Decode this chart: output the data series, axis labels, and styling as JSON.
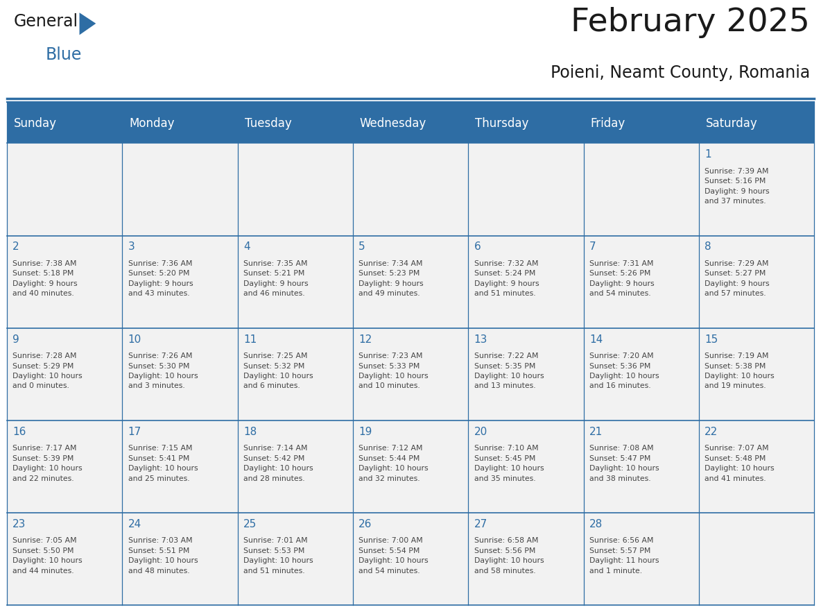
{
  "title": "February 2025",
  "subtitle": "Poieni, Neamt County, Romania",
  "header_color": "#2E6DA4",
  "header_text_color": "#FFFFFF",
  "cell_bg_color": "#F2F2F2",
  "border_color": "#2E6DA4",
  "day_number_color": "#2E6DA4",
  "text_color": "#444444",
  "days_of_week": [
    "Sunday",
    "Monday",
    "Tuesday",
    "Wednesday",
    "Thursday",
    "Friday",
    "Saturday"
  ],
  "weeks": [
    [
      {
        "day": "",
        "info": ""
      },
      {
        "day": "",
        "info": ""
      },
      {
        "day": "",
        "info": ""
      },
      {
        "day": "",
        "info": ""
      },
      {
        "day": "",
        "info": ""
      },
      {
        "day": "",
        "info": ""
      },
      {
        "day": "1",
        "info": "Sunrise: 7:39 AM\nSunset: 5:16 PM\nDaylight: 9 hours\nand 37 minutes."
      }
    ],
    [
      {
        "day": "2",
        "info": "Sunrise: 7:38 AM\nSunset: 5:18 PM\nDaylight: 9 hours\nand 40 minutes."
      },
      {
        "day": "3",
        "info": "Sunrise: 7:36 AM\nSunset: 5:20 PM\nDaylight: 9 hours\nand 43 minutes."
      },
      {
        "day": "4",
        "info": "Sunrise: 7:35 AM\nSunset: 5:21 PM\nDaylight: 9 hours\nand 46 minutes."
      },
      {
        "day": "5",
        "info": "Sunrise: 7:34 AM\nSunset: 5:23 PM\nDaylight: 9 hours\nand 49 minutes."
      },
      {
        "day": "6",
        "info": "Sunrise: 7:32 AM\nSunset: 5:24 PM\nDaylight: 9 hours\nand 51 minutes."
      },
      {
        "day": "7",
        "info": "Sunrise: 7:31 AM\nSunset: 5:26 PM\nDaylight: 9 hours\nand 54 minutes."
      },
      {
        "day": "8",
        "info": "Sunrise: 7:29 AM\nSunset: 5:27 PM\nDaylight: 9 hours\nand 57 minutes."
      }
    ],
    [
      {
        "day": "9",
        "info": "Sunrise: 7:28 AM\nSunset: 5:29 PM\nDaylight: 10 hours\nand 0 minutes."
      },
      {
        "day": "10",
        "info": "Sunrise: 7:26 AM\nSunset: 5:30 PM\nDaylight: 10 hours\nand 3 minutes."
      },
      {
        "day": "11",
        "info": "Sunrise: 7:25 AM\nSunset: 5:32 PM\nDaylight: 10 hours\nand 6 minutes."
      },
      {
        "day": "12",
        "info": "Sunrise: 7:23 AM\nSunset: 5:33 PM\nDaylight: 10 hours\nand 10 minutes."
      },
      {
        "day": "13",
        "info": "Sunrise: 7:22 AM\nSunset: 5:35 PM\nDaylight: 10 hours\nand 13 minutes."
      },
      {
        "day": "14",
        "info": "Sunrise: 7:20 AM\nSunset: 5:36 PM\nDaylight: 10 hours\nand 16 minutes."
      },
      {
        "day": "15",
        "info": "Sunrise: 7:19 AM\nSunset: 5:38 PM\nDaylight: 10 hours\nand 19 minutes."
      }
    ],
    [
      {
        "day": "16",
        "info": "Sunrise: 7:17 AM\nSunset: 5:39 PM\nDaylight: 10 hours\nand 22 minutes."
      },
      {
        "day": "17",
        "info": "Sunrise: 7:15 AM\nSunset: 5:41 PM\nDaylight: 10 hours\nand 25 minutes."
      },
      {
        "day": "18",
        "info": "Sunrise: 7:14 AM\nSunset: 5:42 PM\nDaylight: 10 hours\nand 28 minutes."
      },
      {
        "day": "19",
        "info": "Sunrise: 7:12 AM\nSunset: 5:44 PM\nDaylight: 10 hours\nand 32 minutes."
      },
      {
        "day": "20",
        "info": "Sunrise: 7:10 AM\nSunset: 5:45 PM\nDaylight: 10 hours\nand 35 minutes."
      },
      {
        "day": "21",
        "info": "Sunrise: 7:08 AM\nSunset: 5:47 PM\nDaylight: 10 hours\nand 38 minutes."
      },
      {
        "day": "22",
        "info": "Sunrise: 7:07 AM\nSunset: 5:48 PM\nDaylight: 10 hours\nand 41 minutes."
      }
    ],
    [
      {
        "day": "23",
        "info": "Sunrise: 7:05 AM\nSunset: 5:50 PM\nDaylight: 10 hours\nand 44 minutes."
      },
      {
        "day": "24",
        "info": "Sunrise: 7:03 AM\nSunset: 5:51 PM\nDaylight: 10 hours\nand 48 minutes."
      },
      {
        "day": "25",
        "info": "Sunrise: 7:01 AM\nSunset: 5:53 PM\nDaylight: 10 hours\nand 51 minutes."
      },
      {
        "day": "26",
        "info": "Sunrise: 7:00 AM\nSunset: 5:54 PM\nDaylight: 10 hours\nand 54 minutes."
      },
      {
        "day": "27",
        "info": "Sunrise: 6:58 AM\nSunset: 5:56 PM\nDaylight: 10 hours\nand 58 minutes."
      },
      {
        "day": "28",
        "info": "Sunrise: 6:56 AM\nSunset: 5:57 PM\nDaylight: 11 hours\nand 1 minute."
      },
      {
        "day": "",
        "info": ""
      }
    ]
  ],
  "logo_general_color": "#1a1a1a",
  "logo_blue_color": "#2E6DA4",
  "logo_triangle_color": "#2E6DA4",
  "title_color": "#1a1a1a",
  "subtitle_color": "#1a1a1a",
  "title_fontsize": 34,
  "subtitle_fontsize": 17,
  "header_fontsize": 12,
  "day_num_fontsize": 11,
  "cell_text_fontsize": 7.8,
  "logo_fontsize_general": 17,
  "logo_fontsize_blue": 17
}
